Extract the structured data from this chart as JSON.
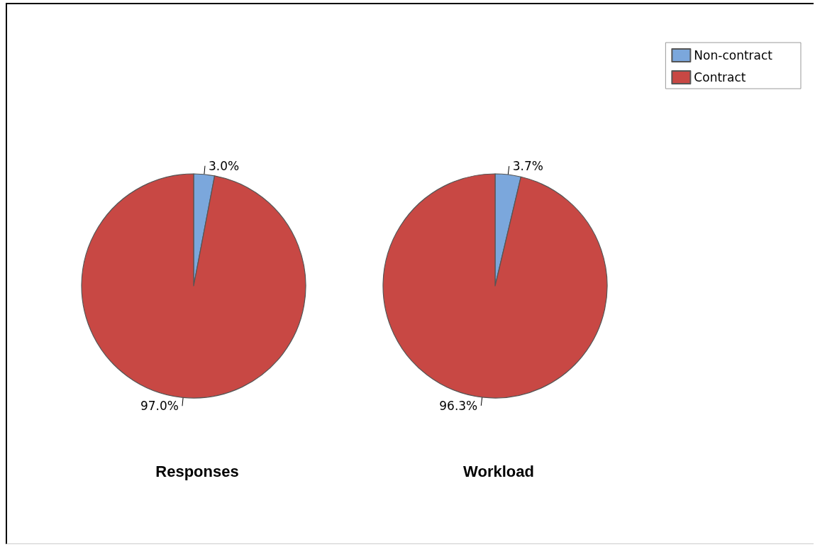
{
  "chart_data": {
    "type": "pie",
    "categories": [
      "Non-contract",
      "Contract"
    ],
    "colors": [
      "#7ba7dc",
      "#c84844"
    ],
    "legend": "top right",
    "series": [
      {
        "name": "Responses",
        "values": [
          3.0,
          97.0
        ],
        "value_labels": [
          "3.0%",
          "97.0%"
        ]
      },
      {
        "name": "Workload",
        "values": [
          3.7,
          96.3
        ],
        "value_labels": [
          "3.7%",
          "96.3%"
        ]
      }
    ]
  }
}
